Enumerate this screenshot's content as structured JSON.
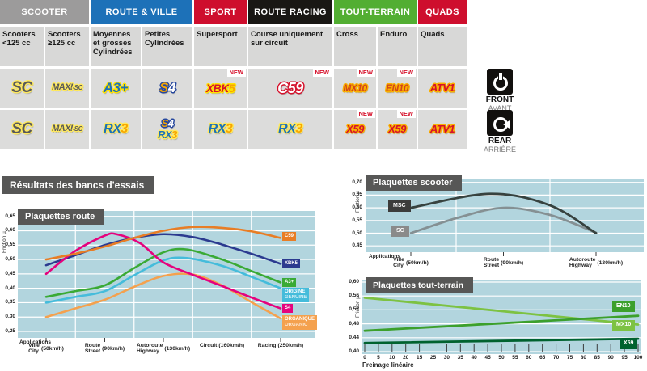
{
  "results_banner": "Résultats des bancs d'essais",
  "matrix": {
    "groups": [
      {
        "label": "SCOOTER",
        "color": "#9C9B9B",
        "span": 2
      },
      {
        "label": "ROUTE & VILLE",
        "color": "#1D71B8",
        "span": 2
      },
      {
        "label": "SPORT",
        "color": "#CE0E2D",
        "span": 1
      },
      {
        "label": "ROUTE RACING",
        "color": "#191714",
        "span": 1
      },
      {
        "label": "TOUT-TERRAIN",
        "color": "#52AE32",
        "span": 2
      },
      {
        "label": "QUADS",
        "color": "#CE0E2D",
        "span": 1
      }
    ],
    "subheaders": [
      "Scooters <125 cc",
      "Scooters ≥125 cc",
      "Moyennes et grosses Cylindrées",
      "Petites Cylindrées",
      "Supersport",
      "Course uniquement sur circuit",
      "Cross",
      "Enduro",
      "Quads"
    ],
    "rows": [
      {
        "side_label": "FRONT",
        "side_sub": "AVANT",
        "side_icon": "front-brake-disc-icon",
        "cells": [
          {
            "logos": [
              {
                "parts": [
                  {
                    "t": "SC",
                    "c": "#58595B"
                  }
                ],
                "ol": "#FFE95E",
                "size": 19
              }
            ],
            "new": false
          },
          {
            "logos": [
              {
                "parts": [
                  {
                    "t": "MAXI",
                    "c": "#58595B"
                  },
                  {
                    "t": "-SC",
                    "c": "#58595B",
                    "size": 8
                  }
                ],
                "ol": "#FFE95E",
                "size": 11
              }
            ],
            "new": false
          },
          {
            "logos": [
              {
                "parts": [
                  {
                    "t": "A3+",
                    "c": "#1D71B8"
                  }
                ],
                "ol": "#FFE200",
                "size": 17
              }
            ],
            "new": false
          },
          {
            "logos": [
              {
                "parts": [
                  {
                    "t": "S",
                    "c": "#F7A600"
                  },
                  {
                    "t": "4",
                    "c": "#FFFFFF"
                  }
                ],
                "ol": "#27489E",
                "size": 17
              }
            ],
            "new": false
          },
          {
            "logos": [
              {
                "parts": [
                  {
                    "t": "XBK",
                    "c": "#D6112B"
                  },
                  {
                    "t": "5",
                    "c": "#F7A600"
                  }
                ],
                "ol": "#FFE200",
                "size": 14
              }
            ],
            "new": true
          },
          {
            "logos": [
              {
                "parts": [
                  {
                    "t": "C59",
                    "c": "#FFFFFF"
                  }
                ],
                "ol": "#D6112B",
                "size": 18
              }
            ],
            "new": true
          },
          {
            "logos": [
              {
                "parts": [
                  {
                    "t": "MX10",
                    "c": "#D2441C"
                  }
                ],
                "ol": "#F9B000",
                "size": 12
              }
            ],
            "new": true
          },
          {
            "logos": [
              {
                "parts": [
                  {
                    "t": "EN10",
                    "c": "#D2441C"
                  }
                ],
                "ol": "#F9B000",
                "size": 12
              }
            ],
            "new": true
          },
          {
            "logos": [
              {
                "parts": [
                  {
                    "t": "ATV1",
                    "c": "#D6112B"
                  }
                ],
                "ol": "#F9B000",
                "size": 13
              }
            ],
            "new": false
          }
        ]
      },
      {
        "side_label": "REAR",
        "side_sub": "ARRIÈRE",
        "side_icon": "rear-brake-icon",
        "cells": [
          {
            "logos": [
              {
                "parts": [
                  {
                    "t": "SC",
                    "c": "#58595B"
                  }
                ],
                "ol": "#FFE95E",
                "size": 19
              }
            ],
            "new": false
          },
          {
            "logos": [
              {
                "parts": [
                  {
                    "t": "MAXI",
                    "c": "#58595B"
                  },
                  {
                    "t": "-SC",
                    "c": "#58595B",
                    "size": 8
                  }
                ],
                "ol": "#FFE95E",
                "size": 11
              }
            ],
            "new": false
          },
          {
            "logos": [
              {
                "parts": [
                  {
                    "t": "RX",
                    "c": "#1D71B8"
                  },
                  {
                    "t": "3",
                    "c": "#F7A600"
                  }
                ],
                "ol": "#FFE95E",
                "size": 16
              }
            ],
            "new": false
          },
          {
            "logos": [
              {
                "parts": [
                  {
                    "t": "S",
                    "c": "#F7A600"
                  },
                  {
                    "t": "4",
                    "c": "#FFFFFF"
                  }
                ],
                "ol": "#27489E",
                "size": 13
              },
              {
                "parts": [
                  {
                    "t": "RX",
                    "c": "#1D71B8"
                  },
                  {
                    "t": "3",
                    "c": "#F7A600"
                  }
                ],
                "ol": "#FFE95E",
                "size": 13
              }
            ],
            "new": false
          },
          {
            "logos": [
              {
                "parts": [
                  {
                    "t": "RX",
                    "c": "#1D71B8"
                  },
                  {
                    "t": "3",
                    "c": "#F7A600"
                  }
                ],
                "ol": "#FFE95E",
                "size": 16
              }
            ],
            "new": false
          },
          {
            "logos": [
              {
                "parts": [
                  {
                    "t": "RX",
                    "c": "#1D71B8"
                  },
                  {
                    "t": "3",
                    "c": "#F7A600"
                  }
                ],
                "ol": "#FFE95E",
                "size": 16
              }
            ],
            "new": false
          },
          {
            "logos": [
              {
                "parts": [
                  {
                    "t": "X59",
                    "c": "#D6112B"
                  }
                ],
                "ol": "#F9B000",
                "size": 13
              }
            ],
            "new": true
          },
          {
            "logos": [
              {
                "parts": [
                  {
                    "t": "X59",
                    "c": "#D6112B"
                  }
                ],
                "ol": "#F9B000",
                "size": 13
              }
            ],
            "new": true
          },
          {
            "logos": [
              {
                "parts": [
                  {
                    "t": "ATV1",
                    "c": "#D6112B"
                  }
                ],
                "ol": "#F9B000",
                "size": 13
              }
            ],
            "new": false
          }
        ]
      }
    ]
  },
  "plot_bg": "#B2D5DE",
  "chart_data": [
    {
      "id": "route",
      "type": "line",
      "title": "Plaquettes route",
      "ylabel": "Friction µ",
      "ylim": [
        0.25,
        0.65
      ],
      "y_tick_labels": [
        "0,65",
        "0,60",
        "0,55",
        "0,50",
        "0,45",
        "0,40",
        "0,35",
        "0,30",
        "0,25"
      ],
      "x_caption": "Applications",
      "x_stations": [
        {
          "lines": [
            "Ville",
            "City"
          ],
          "speed": "(50km/h)"
        },
        {
          "lines": [
            "Route",
            "Street"
          ],
          "speed": "(90km/h)"
        },
        {
          "lines": [
            "Autoroute",
            "Highway"
          ],
          "speed": "(130km/h)"
        },
        {
          "lines": [
            "Circuit"
          ],
          "speed": "(160km/h)"
        },
        {
          "lines": [
            "Racing"
          ],
          "speed": "(250km/h)"
        }
      ],
      "grid": true,
      "legend_position": "right-of-lines",
      "series": [
        {
          "name": "ORGANIQUE ORGANIC",
          "color": "#F4A14E",
          "badge_lines": [
            "ORGANIQUE",
            "ORGANIC"
          ],
          "points": [
            [
              0,
              0.3
            ],
            [
              0.5,
              0.33
            ],
            [
              1,
              0.36
            ],
            [
              1.5,
              0.405
            ],
            [
              2,
              0.443
            ],
            [
              2.5,
              0.448
            ],
            [
              3,
              0.41
            ],
            [
              3.5,
              0.352
            ],
            [
              4,
              0.295
            ]
          ]
        },
        {
          "name": "ORIGINE GENUINE",
          "color": "#45BCDB",
          "badge_lines": [
            "ORIGINE",
            "GENUINE"
          ],
          "points": [
            [
              0,
              0.35
            ],
            [
              0.5,
              0.37
            ],
            [
              1,
              0.39
            ],
            [
              1.5,
              0.445
            ],
            [
              2,
              0.497
            ],
            [
              2.4,
              0.505
            ],
            [
              3,
              0.478
            ],
            [
              3.5,
              0.44
            ],
            [
              4,
              0.4
            ]
          ]
        },
        {
          "name": "A3+",
          "color": "#3AAA35",
          "badge_lines": [
            "A3+"
          ],
          "points": [
            [
              0,
              0.37
            ],
            [
              0.5,
              0.39
            ],
            [
              1,
              0.41
            ],
            [
              1.5,
              0.47
            ],
            [
              2,
              0.525
            ],
            [
              2.4,
              0.535
            ],
            [
              3,
              0.5
            ],
            [
              3.5,
              0.46
            ],
            [
              4,
              0.42
            ]
          ]
        },
        {
          "name": "XBK5",
          "color": "#2B3A8F",
          "badge_lines": [
            "XBK5"
          ],
          "points": [
            [
              0,
              0.48
            ],
            [
              0.5,
              0.515
            ],
            [
              1,
              0.55
            ],
            [
              1.5,
              0.575
            ],
            [
              2,
              0.588
            ],
            [
              2.5,
              0.578
            ],
            [
              3,
              0.552
            ],
            [
              3.5,
              0.52
            ],
            [
              4,
              0.485
            ]
          ]
        },
        {
          "name": "S4",
          "color": "#E5027D",
          "badge_lines": [
            "S4"
          ],
          "points": [
            [
              0,
              0.45
            ],
            [
              0.5,
              0.53
            ],
            [
              1,
              0.583
            ],
            [
              1.2,
              0.588
            ],
            [
              1.6,
              0.557
            ],
            [
              2,
              0.49
            ],
            [
              2.5,
              0.447
            ],
            [
              3,
              0.408
            ],
            [
              3.5,
              0.368
            ],
            [
              4,
              0.33
            ]
          ]
        },
        {
          "name": "C59",
          "color": "#E87D25",
          "badge_lines": [
            "C59"
          ],
          "points": [
            [
              0,
              0.5
            ],
            [
              0.5,
              0.52
            ],
            [
              1,
              0.545
            ],
            [
              1.5,
              0.575
            ],
            [
              2,
              0.6
            ],
            [
              2.5,
              0.613
            ],
            [
              3,
              0.61
            ],
            [
              3.5,
              0.598
            ],
            [
              4,
              0.575
            ]
          ]
        }
      ]
    },
    {
      "id": "scooter",
      "type": "line",
      "title": "Plaquettes scooter",
      "ylabel": "Friction µ",
      "ylim": [
        0.45,
        0.7
      ],
      "y_tick_labels": [
        "0,70",
        "0,65",
        "0,60",
        "0,55",
        "0,50",
        "0,45"
      ],
      "x_caption": "Applications",
      "x_stations": [
        {
          "lines": [
            "Ville",
            "City"
          ],
          "speed": "(50km/h)"
        },
        {
          "lines": [
            "Route",
            "Street"
          ],
          "speed": "(90km/h)"
        },
        {
          "lines": [
            "Autoroute",
            "Highway"
          ],
          "speed": "(130km/h)"
        }
      ],
      "grid": true,
      "legend_position": "left-on-lines",
      "series": [
        {
          "name": "SC",
          "color": "#859093",
          "badge_lines": [
            "SC"
          ],
          "badge_bg": "#8A8A8A",
          "points": [
            [
              0,
              0.5
            ],
            [
              0.5,
              0.56
            ],
            [
              1,
              0.6
            ],
            [
              1.5,
              0.572
            ],
            [
              2,
              0.502
            ]
          ]
        },
        {
          "name": "MSC",
          "color": "#37423F",
          "badge_lines": [
            "MSC"
          ],
          "badge_bg": "#3C3C3B",
          "points": [
            [
              0,
              0.6
            ],
            [
              0.85,
              0.655
            ],
            [
              1.5,
              0.61
            ],
            [
              2,
              0.5
            ]
          ]
        }
      ]
    },
    {
      "id": "terrain",
      "type": "line",
      "title": "Plaquettes tout-terrain",
      "ylabel": "Friction µ",
      "ylim": [
        0.4,
        0.6
      ],
      "y_tick_labels": [
        "0,60",
        "0,56",
        "0,52",
        "0,48",
        "0,44",
        "0,40"
      ],
      "xlabel": "Freinage linéaire",
      "xlim": [
        0,
        100
      ],
      "x_tick_labels": [
        "0",
        "5",
        "10",
        "20",
        "15",
        "25",
        "30",
        "35",
        "40",
        "45",
        "50",
        "55",
        "60",
        "65",
        "70",
        "75",
        "80",
        "85",
        "90",
        "95",
        "100"
      ],
      "grid": true,
      "legend_position": "right",
      "series": [
        {
          "name": "MX10",
          "color": "#7DC242",
          "badge_lines": [
            "MX10"
          ],
          "points": [
            [
              0,
              0.555
            ],
            [
              100,
              0.478
            ]
          ]
        },
        {
          "name": "EN10",
          "color": "#3CA02C",
          "badge_lines": [
            "EN10"
          ],
          "points": [
            [
              0,
              0.46
            ],
            [
              100,
              0.503
            ]
          ]
        },
        {
          "name": "X59",
          "color": "#00622F",
          "badge_lines": [
            "X59"
          ],
          "points": [
            [
              0,
              0.425
            ],
            [
              100,
              0.437
            ]
          ]
        }
      ]
    }
  ]
}
